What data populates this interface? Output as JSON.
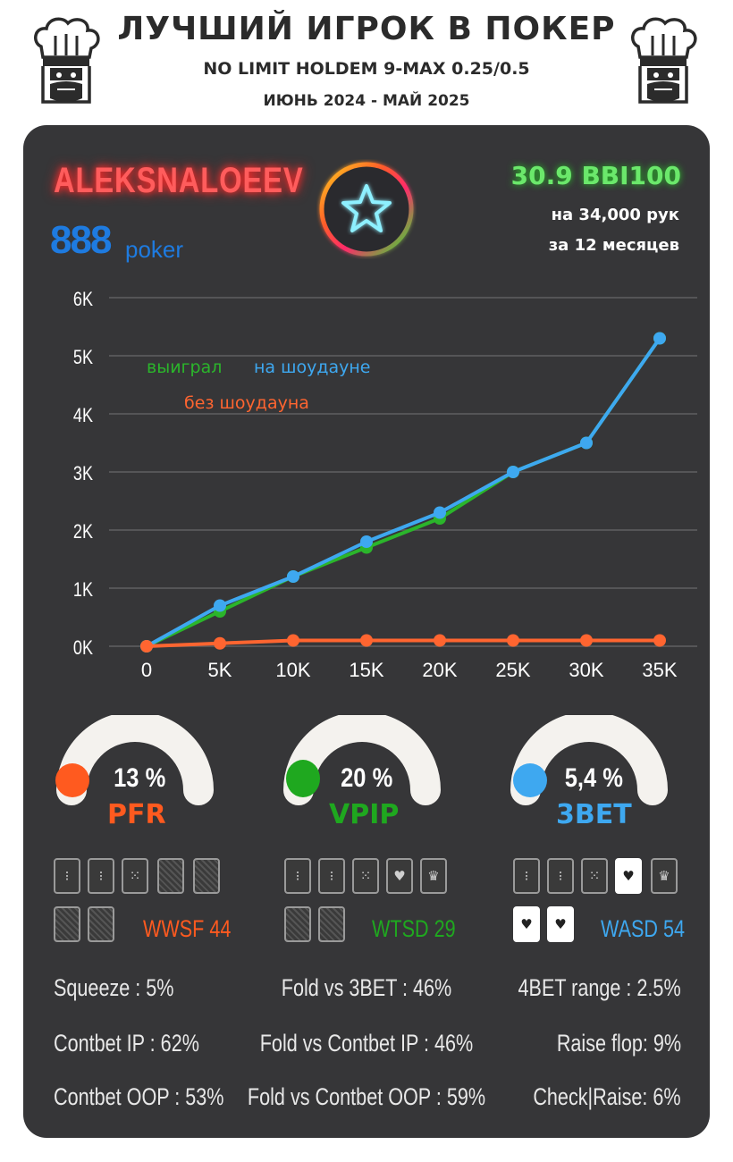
{
  "header": {
    "title": "ЛУЧШИЙ ИГРОК В ПОКЕР",
    "subtitle": "NO LIMIT HOLDEM 9-MAX 0.25/0.5",
    "period": "ИЮНЬ 2024 - МАЙ 2025"
  },
  "player": {
    "name": "ALEKSNALOEEV",
    "room_number": "888",
    "room_word": "poker",
    "winrate": "30.9 BBI100",
    "hands": "на 34,000 рук",
    "months": "за  12 месяцев"
  },
  "chart_data": {
    "type": "line",
    "x": [
      0,
      5000,
      10000,
      15000,
      20000,
      25000,
      30000,
      35000
    ],
    "x_tick_labels": [
      "0",
      "5K",
      "10K",
      "15K",
      "20K",
      "25K",
      "30K",
      "35K"
    ],
    "y_tick_labels": [
      "0K",
      "1K",
      "2K",
      "3K",
      "4K",
      "5K",
      "6K"
    ],
    "ylim": [
      0,
      6000
    ],
    "grid": true,
    "series": [
      {
        "name": "выиграл",
        "color": "#2bb52b",
        "values": [
          0,
          600,
          1200,
          1700,
          2200,
          3000,
          3500,
          5300
        ]
      },
      {
        "name": "на шоудауне",
        "color": "#3ea8f0",
        "values": [
          0,
          700,
          1200,
          1800,
          2300,
          3000,
          3500,
          5300
        ]
      },
      {
        "name": "без шоудауна",
        "color": "#ff6530",
        "values": [
          0,
          50,
          100,
          100,
          100,
          100,
          100,
          100
        ]
      }
    ]
  },
  "gauges": [
    {
      "value": "13 %",
      "label": "PFR",
      "color": "#ff5a1f",
      "stat": "WWSF 44"
    },
    {
      "value": "20 %",
      "label": "VPIP",
      "color": "#1fa81f",
      "stat": "WTSD 29"
    },
    {
      "value": "5,4 %",
      "label": "3BET",
      "color": "#3ea8f0",
      "stat": "WASD 54"
    }
  ],
  "stats": {
    "col1": [
      "Squeeze : 5%",
      "Contbet IP : 62%",
      "Contbet OOP : 53%"
    ],
    "col2": [
      "Fold vs 3BET : 46%",
      "Fold vs Contbet IP : 46%",
      "Fold vs Contbet OOP : 59%"
    ],
    "col3": [
      "4BET range : 2.5%",
      "Raise flop: 9%",
      "Check|Raise: 6%"
    ]
  }
}
